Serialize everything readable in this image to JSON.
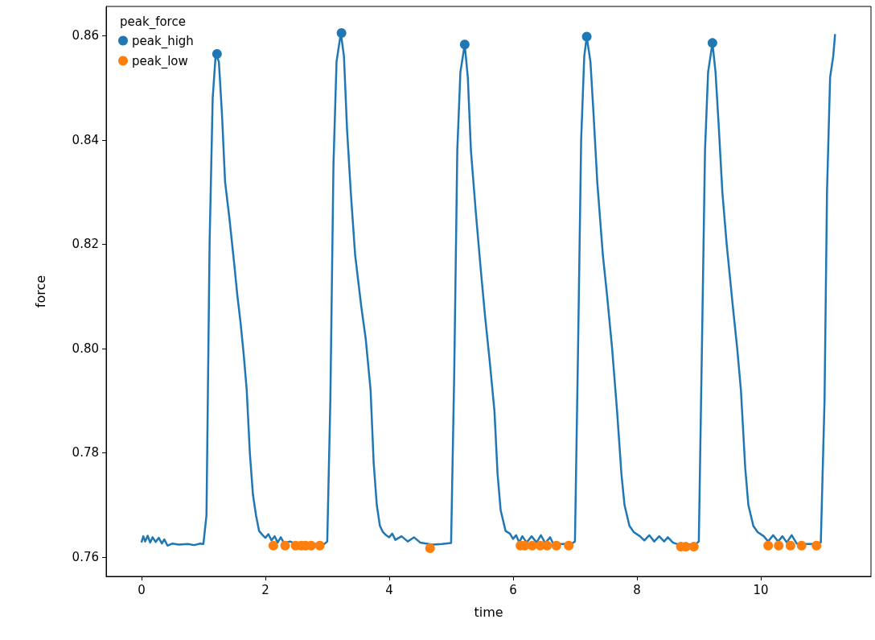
{
  "chart_data": {
    "type": "line",
    "xlabel": "time",
    "ylabel": "force",
    "legend_title": "peak_force",
    "legend": "top left",
    "grid": false,
    "line_style": "solid",
    "xlim": [
      -0.57,
      11.78
    ],
    "xticks": [
      0,
      2,
      4,
      6,
      8,
      10
    ],
    "ylim": [
      0.7563,
      0.8656
    ],
    "yticks": [
      {
        "value": 0.76,
        "label": "0.76"
      },
      {
        "value": 0.78,
        "label": "0.78"
      },
      {
        "value": 0.8,
        "label": "0.80"
      },
      {
        "value": 0.82,
        "label": "0.82"
      },
      {
        "value": 0.84,
        "label": "0.84"
      },
      {
        "value": 0.86,
        "label": "0.86"
      }
    ],
    "series": [
      {
        "marker": "none",
        "color": "#1f77b4",
        "x": [
          0,
          0.03,
          0.06,
          0.1,
          0.14,
          0.18,
          0.23,
          0.28,
          0.33,
          0.37,
          0.42,
          0.5,
          0.6,
          0.75,
          0.85,
          0.95,
          1.0,
          1.05,
          1.1,
          1.15,
          1.2,
          1.25,
          1.3,
          1.35,
          1.42,
          1.5,
          1.55,
          1.6,
          1.65,
          1.7,
          1.75,
          1.8,
          1.85,
          1.9,
          1.95,
          2.0,
          2.05,
          2.1,
          2.15,
          2.2,
          2.25,
          2.3,
          2.4,
          2.5,
          2.7,
          2.95,
          3.0,
          3.05,
          3.1,
          3.15,
          3.22,
          3.27,
          3.32,
          3.38,
          3.45,
          3.55,
          3.62,
          3.7,
          3.75,
          3.8,
          3.85,
          3.9,
          3.95,
          4.0,
          4.05,
          4.1,
          4.2,
          4.3,
          4.4,
          4.5,
          4.6,
          4.7,
          4.85,
          5.0,
          5.05,
          5.1,
          5.15,
          5.22,
          5.27,
          5.32,
          5.4,
          5.48,
          5.55,
          5.62,
          5.7,
          5.75,
          5.8,
          5.88,
          5.95,
          6.0,
          6.05,
          6.1,
          6.15,
          6.22,
          6.3,
          6.38,
          6.45,
          6.52,
          6.6,
          6.65,
          6.8,
          6.95,
          7.0,
          7.05,
          7.1,
          7.15,
          7.19,
          7.25,
          7.3,
          7.36,
          7.45,
          7.52,
          7.6,
          7.68,
          7.75,
          7.8,
          7.88,
          7.95,
          8.05,
          8.12,
          8.2,
          8.28,
          8.36,
          8.44,
          8.5,
          8.58,
          8.65,
          8.8,
          8.95,
          9.0,
          9.05,
          9.1,
          9.15,
          9.22,
          9.27,
          9.32,
          9.38,
          9.45,
          9.55,
          9.62,
          9.68,
          9.75,
          9.8,
          9.88,
          9.95,
          10.05,
          10.12,
          10.2,
          10.28,
          10.35,
          10.42,
          10.5,
          10.58,
          10.7,
          10.85,
          10.97,
          11.03,
          11.07,
          11.12,
          11.17,
          11.2
        ],
        "values": [
          0.7628,
          0.764,
          0.763,
          0.7641,
          0.7628,
          0.7638,
          0.7629,
          0.7637,
          0.7626,
          0.7634,
          0.7622,
          0.7626,
          0.7624,
          0.7625,
          0.7623,
          0.7626,
          0.7625,
          0.768,
          0.82,
          0.848,
          0.8565,
          0.855,
          0.845,
          0.832,
          0.825,
          0.816,
          0.81,
          0.805,
          0.799,
          0.792,
          0.78,
          0.772,
          0.768,
          0.765,
          0.7643,
          0.7637,
          0.7644,
          0.7632,
          0.764,
          0.7628,
          0.7638,
          0.7627,
          0.763,
          0.7625,
          0.7625,
          0.7625,
          0.763,
          0.79,
          0.835,
          0.855,
          0.8605,
          0.856,
          0.842,
          0.83,
          0.818,
          0.808,
          0.802,
          0.792,
          0.778,
          0.77,
          0.766,
          0.7648,
          0.7642,
          0.7638,
          0.7645,
          0.7633,
          0.764,
          0.763,
          0.7638,
          0.7628,
          0.7626,
          0.7624,
          0.7625,
          0.7627,
          0.795,
          0.838,
          0.853,
          0.8583,
          0.852,
          0.838,
          0.826,
          0.815,
          0.806,
          0.798,
          0.788,
          0.776,
          0.769,
          0.765,
          0.7645,
          0.7635,
          0.7642,
          0.7628,
          0.764,
          0.7628,
          0.764,
          0.7628,
          0.7642,
          0.7627,
          0.7638,
          0.7625,
          0.7625,
          0.7626,
          0.763,
          0.8,
          0.84,
          0.856,
          0.8598,
          0.855,
          0.845,
          0.832,
          0.818,
          0.81,
          0.8,
          0.788,
          0.776,
          0.77,
          0.766,
          0.7648,
          0.764,
          0.7632,
          0.7642,
          0.763,
          0.764,
          0.763,
          0.7638,
          0.7628,
          0.7625,
          0.7624,
          0.7625,
          0.763,
          0.8,
          0.838,
          0.853,
          0.8586,
          0.853,
          0.843,
          0.83,
          0.82,
          0.808,
          0.8,
          0.792,
          0.777,
          0.77,
          0.766,
          0.7648,
          0.764,
          0.763,
          0.7642,
          0.763,
          0.764,
          0.7628,
          0.7642,
          0.7626,
          0.7625,
          0.7625,
          0.7628,
          0.79,
          0.83,
          0.852,
          0.856,
          0.8603
        ]
      },
      {
        "type": "scatter",
        "name": "peak_high",
        "marker": "circle",
        "color": "#1f77b4",
        "x": [
          1.22,
          3.23,
          5.22,
          7.19,
          9.22
        ],
        "values": [
          0.8565,
          0.8605,
          0.8583,
          0.8598,
          0.8586
        ]
      },
      {
        "type": "scatter",
        "name": "peak_low",
        "marker": "circle",
        "color": "#ff7f0e",
        "x": [
          2.13,
          2.32,
          2.49,
          2.58,
          2.65,
          2.74,
          2.88,
          4.66,
          6.12,
          6.19,
          6.31,
          6.44,
          6.55,
          6.7,
          6.9,
          8.71,
          8.79,
          8.92,
          10.12,
          10.29,
          10.48,
          10.66,
          10.9
        ],
        "values": [
          0.7622,
          0.7622,
          0.7622,
          0.7622,
          0.7622,
          0.7622,
          0.7622,
          0.7617,
          0.7622,
          0.7622,
          0.7622,
          0.7622,
          0.7622,
          0.7622,
          0.7622,
          0.762,
          0.762,
          0.762,
          0.7622,
          0.7622,
          0.7622,
          0.7622,
          0.7622
        ]
      }
    ]
  }
}
